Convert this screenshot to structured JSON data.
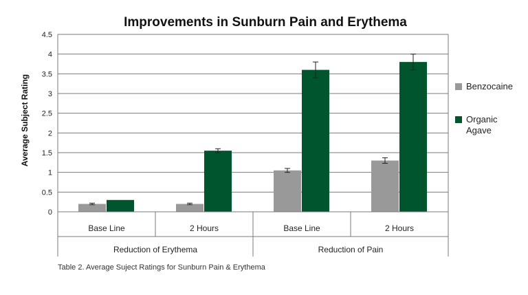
{
  "chart_data": {
    "type": "bar",
    "title": "Improvements in Sunburn Pain and Erythema",
    "ylabel": "Average Subject Rating",
    "xlabel": "",
    "ylim": [
      0,
      4.5
    ],
    "yticks": [
      "0",
      "0.5",
      "1",
      "1.5",
      "2",
      "2.5",
      "3",
      "3.5",
      "4",
      "4.5"
    ],
    "grid": true,
    "legend_position": "right",
    "groups": [
      {
        "label": "Reduction of Erythema",
        "categories": [
          "Base Line",
          "2 Hours"
        ]
      },
      {
        "label": "Reduction of Pain",
        "categories": [
          "Base Line",
          "2 Hours"
        ]
      }
    ],
    "categories": [
      "Base Line",
      "2 Hours",
      "Base Line",
      "2 Hours"
    ],
    "series": [
      {
        "name": "Benzocaine",
        "color": "#999999",
        "values": [
          0.2,
          0.2,
          1.05,
          1.3
        ],
        "errors": [
          0.02,
          0.02,
          0.05,
          0.07
        ]
      },
      {
        "name": "Organic Agave",
        "color": "#00552e",
        "values": [
          0.3,
          1.55,
          3.6,
          3.8
        ],
        "errors": [
          0,
          0.05,
          0.2,
          0.2
        ]
      }
    ]
  },
  "caption": "Table 2. Average Suject Ratings for Sunburn Pain & Erythema",
  "legend": {
    "items": [
      {
        "label": "Benzocaine",
        "color": "#999999"
      },
      {
        "label": "Organic Agave",
        "color": "#00552e"
      }
    ]
  }
}
